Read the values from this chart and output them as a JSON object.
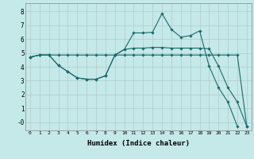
{
  "xlabel": "Humidex (Indice chaleur)",
  "bg_color": "#c5e8e8",
  "grid_color": "#b0cccc",
  "line_color": "#1a6b6b",
  "ylim": [
    -0.6,
    8.6
  ],
  "xlim": [
    -0.5,
    23.5
  ],
  "yticks": [
    0,
    1,
    2,
    3,
    4,
    5,
    6,
    7,
    8
  ],
  "ytick_labels": [
    "-0",
    "1",
    "2",
    "3",
    "4",
    "5",
    "6",
    "7",
    "8"
  ],
  "xticks": [
    0,
    1,
    2,
    3,
    4,
    5,
    6,
    7,
    8,
    9,
    10,
    11,
    12,
    13,
    14,
    15,
    16,
    17,
    18,
    19,
    20,
    21,
    22,
    23
  ],
  "line1_x": [
    0,
    1,
    2,
    3,
    4,
    5,
    6,
    7,
    8,
    9,
    10,
    11,
    12,
    13,
    14,
    15,
    16,
    17,
    18,
    19,
    20,
    21,
    22,
    23
  ],
  "line1_y": [
    4.7,
    4.85,
    4.85,
    4.85,
    4.85,
    4.85,
    4.85,
    4.85,
    4.85,
    4.85,
    4.85,
    4.85,
    4.85,
    4.85,
    4.85,
    4.85,
    4.85,
    4.85,
    4.85,
    4.85,
    4.85,
    4.85,
    4.85,
    -0.3
  ],
  "line2_x": [
    0,
    1,
    2,
    3,
    4,
    5,
    6,
    7,
    8,
    9,
    10,
    11,
    12,
    13,
    14,
    15,
    16,
    17,
    18,
    19,
    20,
    21,
    22
  ],
  "line2_y": [
    4.7,
    4.85,
    4.85,
    4.1,
    3.65,
    3.2,
    3.1,
    3.1,
    3.35,
    4.85,
    5.25,
    6.45,
    6.45,
    6.5,
    7.85,
    6.7,
    6.15,
    6.25,
    6.6,
    4.05,
    2.5,
    1.45,
    -0.3
  ],
  "line3_x": [
    0,
    1,
    2,
    3,
    4,
    5,
    6,
    7,
    8,
    9,
    10,
    11,
    12,
    13,
    14,
    15,
    16,
    17,
    18,
    19,
    20,
    21,
    22,
    23
  ],
  "line3_y": [
    4.7,
    4.85,
    4.85,
    4.1,
    3.65,
    3.2,
    3.1,
    3.1,
    3.35,
    4.85,
    5.25,
    5.35,
    5.35,
    5.4,
    5.4,
    5.35,
    5.35,
    5.35,
    5.35,
    5.3,
    4.05,
    2.5,
    1.45,
    -0.3
  ],
  "markersize": 1.8,
  "linewidth": 0.8
}
